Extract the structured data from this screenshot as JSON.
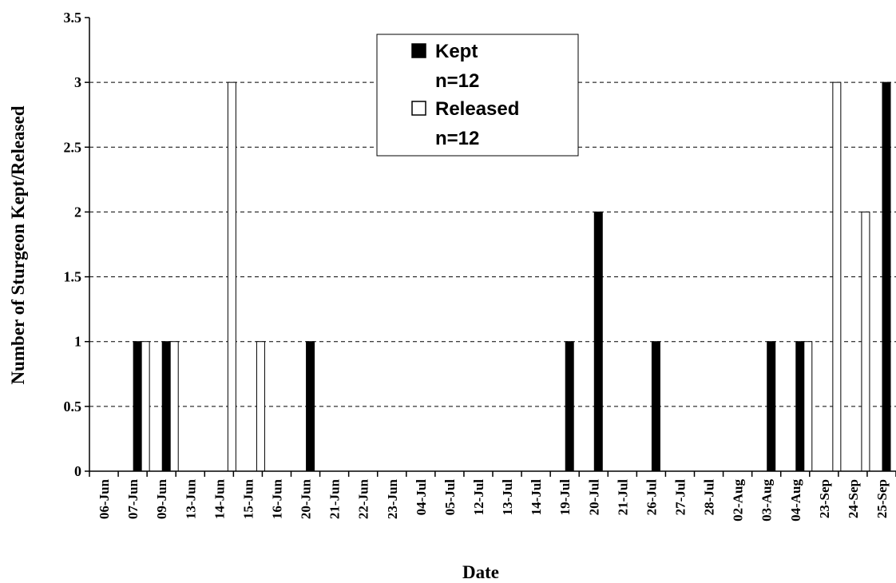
{
  "chart_data": {
    "type": "bar",
    "xlabel": "Date",
    "ylabel": "Number of Sturgeon Kept/Released",
    "ylim": [
      0,
      3.5
    ],
    "yticks": [
      0,
      0.5,
      1,
      1.5,
      2,
      2.5,
      3,
      3.5
    ],
    "ytick_labels": [
      "0",
      "0.5",
      "1",
      "1.5",
      "2",
      "2.5",
      "3",
      "3.5"
    ],
    "grid": "horizontal-dashed",
    "legend_position": "top-center",
    "categories": [
      "06-Jun",
      "07-Jun",
      "09-Jun",
      "13-Jun",
      "14-Jun",
      "15-Jun",
      "16-Jun",
      "20-Jun",
      "21-Jun",
      "22-Jun",
      "23-Jun",
      "04-Jul",
      "05-Jul",
      "12-Jul",
      "13-Jul",
      "14-Jul",
      "19-Jul",
      "20-Jul",
      "21-Jul",
      "26-Jul",
      "27-Jul",
      "28-Jul",
      "02-Aug",
      "03-Aug",
      "04-Aug",
      "23-Sep",
      "24-Sep",
      "25-Sep"
    ],
    "series": [
      {
        "name": "Kept",
        "legend_lines": [
          "Kept",
          "n=12"
        ],
        "color": "#000000",
        "values": [
          0,
          1,
          1,
          0,
          0,
          0,
          0,
          1,
          0,
          0,
          0,
          0,
          0,
          0,
          0,
          0,
          1,
          2,
          0,
          1,
          0,
          0,
          0,
          1,
          1,
          0,
          0,
          3
        ]
      },
      {
        "name": "Released",
        "legend_lines": [
          "Released",
          "n=12"
        ],
        "color": "#ffffff",
        "values": [
          0,
          1,
          1,
          0,
          3,
          1,
          0,
          0,
          0,
          0,
          0,
          0,
          0,
          0,
          0,
          0,
          0,
          0,
          0,
          0,
          0,
          0,
          0,
          0,
          1,
          3,
          2,
          0
        ]
      }
    ]
  }
}
